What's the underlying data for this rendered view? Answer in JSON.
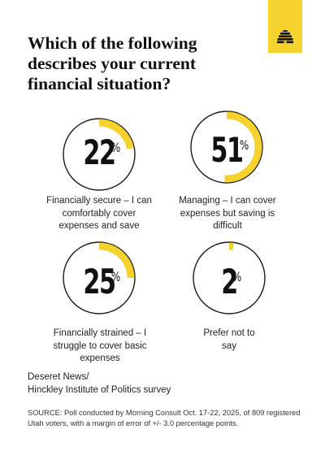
{
  "title": "Which of the following describes your current financial situation?",
  "brand_color": "#f5d22e",
  "logo": {
    "icon": "beehive-icon"
  },
  "chart_data": {
    "type": "donut",
    "title": "Which of the following describes your current financial situation?",
    "unit": "%",
    "accent_color": "#f5d22e",
    "items": [
      {
        "value": 22,
        "label": "Financially secure – I can comfortably cover expenses and save"
      },
      {
        "value": 51,
        "label": "Managing – I can cover expenses but saving is difficult"
      },
      {
        "value": 25,
        "label": "Financially strained – I struggle to cover basic expenses"
      },
      {
        "value": 2,
        "label": "Prefer not to say"
      }
    ]
  },
  "source": {
    "outlet": "Deseret News/",
    "survey": "Hinckley Institute of Politics survey",
    "note": "SOURCE: Poll conducted by Morning Consult Oct. 17-22, 2025, of 809 registered Utah voters, with a margin of error of +/- 3.0 percentage points."
  }
}
